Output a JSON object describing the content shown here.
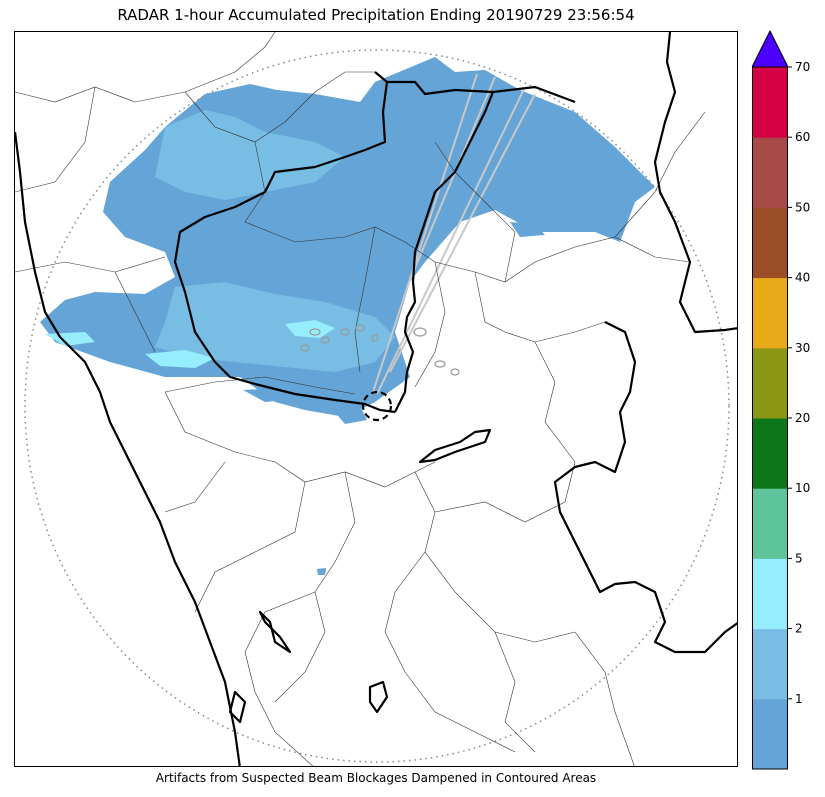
{
  "title": "RADAR 1-hour Accumulated Precipitation Ending 20190729 23:56:54",
  "caption": "Artifacts from Suspected Beam Blockages Dampened in Contoured Areas",
  "colorbar": {
    "extend": "max",
    "extend_color": "#4b00ff",
    "bins": [
      {
        "upper": 1,
        "label": "1",
        "color": "#64a4d6"
      },
      {
        "upper": 2,
        "label": "2",
        "color": "#78bde3"
      },
      {
        "upper": 5,
        "label": "5",
        "color": "#96edfd"
      },
      {
        "upper": 10,
        "label": "10",
        "color": "#5dc49b"
      },
      {
        "upper": 20,
        "label": "20",
        "color": "#0c7619"
      },
      {
        "upper": 30,
        "label": "30",
        "color": "#8b9615"
      },
      {
        "upper": 40,
        "label": "40",
        "color": "#e9aa1a"
      },
      {
        "upper": 50,
        "label": "50",
        "color": "#9a4d27"
      },
      {
        "upper": 60,
        "label": "60",
        "color": "#a84a47"
      },
      {
        "upper": 70,
        "label": "70",
        "color": "#d50045"
      }
    ]
  },
  "map": {
    "range_ring_style": "dotted gray",
    "beam_blockage_lines_color": "#c8c8c8",
    "radar_site_marker": "dashed black circle"
  }
}
